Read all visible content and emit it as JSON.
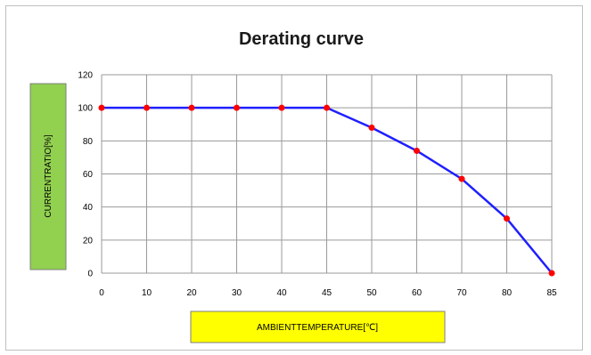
{
  "chart_data": {
    "type": "line",
    "title": "Derating curve",
    "xlabel": "AMBIENTTEMPERATURE[℃]",
    "ylabel": "CURRENTRATIO[%]",
    "categories": [
      "0",
      "10",
      "20",
      "30",
      "40",
      "45",
      "50",
      "60",
      "70",
      "80",
      "85"
    ],
    "series": [
      {
        "values": [
          100,
          100,
          100,
          100,
          100,
          100,
          88,
          74,
          57,
          33,
          0
        ],
        "line_color": "#1f1fff",
        "marker_color": "#ff0000"
      }
    ],
    "y_ticks": [
      "0",
      "20",
      "40",
      "60",
      "80",
      "100",
      "120"
    ],
    "ylim": [
      0,
      120
    ],
    "grid": true,
    "legend": "none",
    "xlabel_box_color": "#ffff00",
    "ylabel_box_color": "#92d050"
  }
}
